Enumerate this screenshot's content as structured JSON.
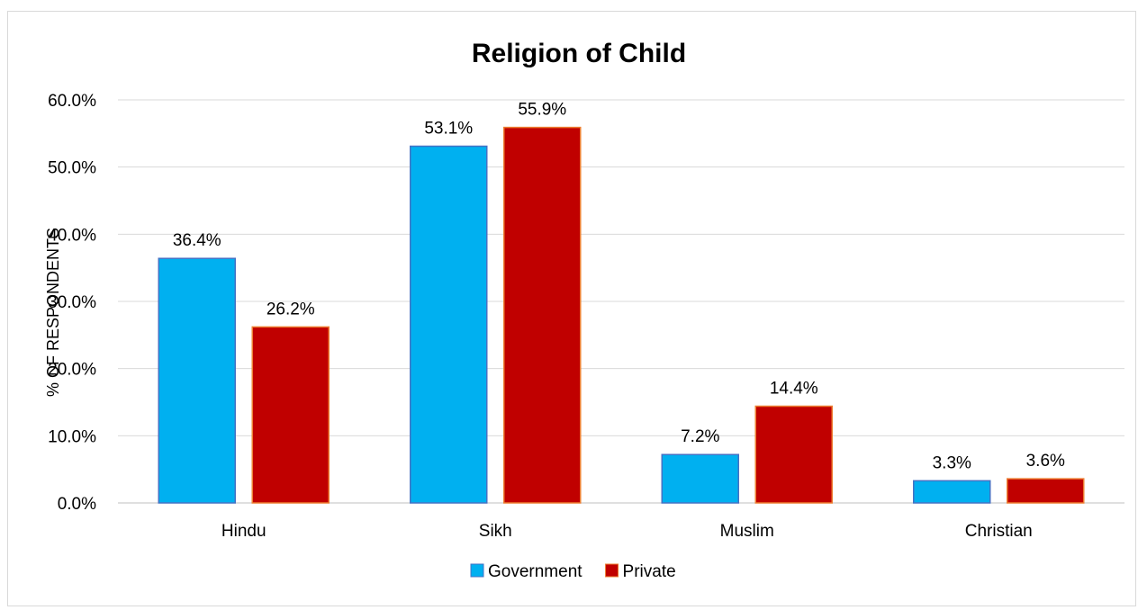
{
  "chart_data": {
    "type": "bar",
    "title": "Religion of Child",
    "xlabel": "",
    "ylabel": "% OF RESPONDENTS",
    "categories": [
      "Hindu",
      "Sikh",
      "Muslim",
      "Christian"
    ],
    "series": [
      {
        "name": "Government",
        "values": [
          36.4,
          53.1,
          7.2,
          3.3
        ],
        "labels": [
          "36.4%",
          "53.1%",
          "7.2%",
          "3.3%"
        ],
        "color": "#00b0f0",
        "stroke": "#4472c4"
      },
      {
        "name": "Private",
        "values": [
          26.2,
          55.9,
          14.4,
          3.6
        ],
        "labels": [
          "26.2%",
          "55.9%",
          "14.4%",
          "3.6%"
        ],
        "color": "#c00000",
        "stroke": "#ed7d31"
      }
    ],
    "ylim": [
      0,
      60
    ],
    "yticks": [
      0,
      10,
      20,
      30,
      40,
      50,
      60
    ],
    "ytick_labels": [
      "0.0%",
      "10.0%",
      "20.0%",
      "30.0%",
      "40.0%",
      "50.0%",
      "60.0%"
    ],
    "grid": true,
    "legend_position": "bottom"
  }
}
